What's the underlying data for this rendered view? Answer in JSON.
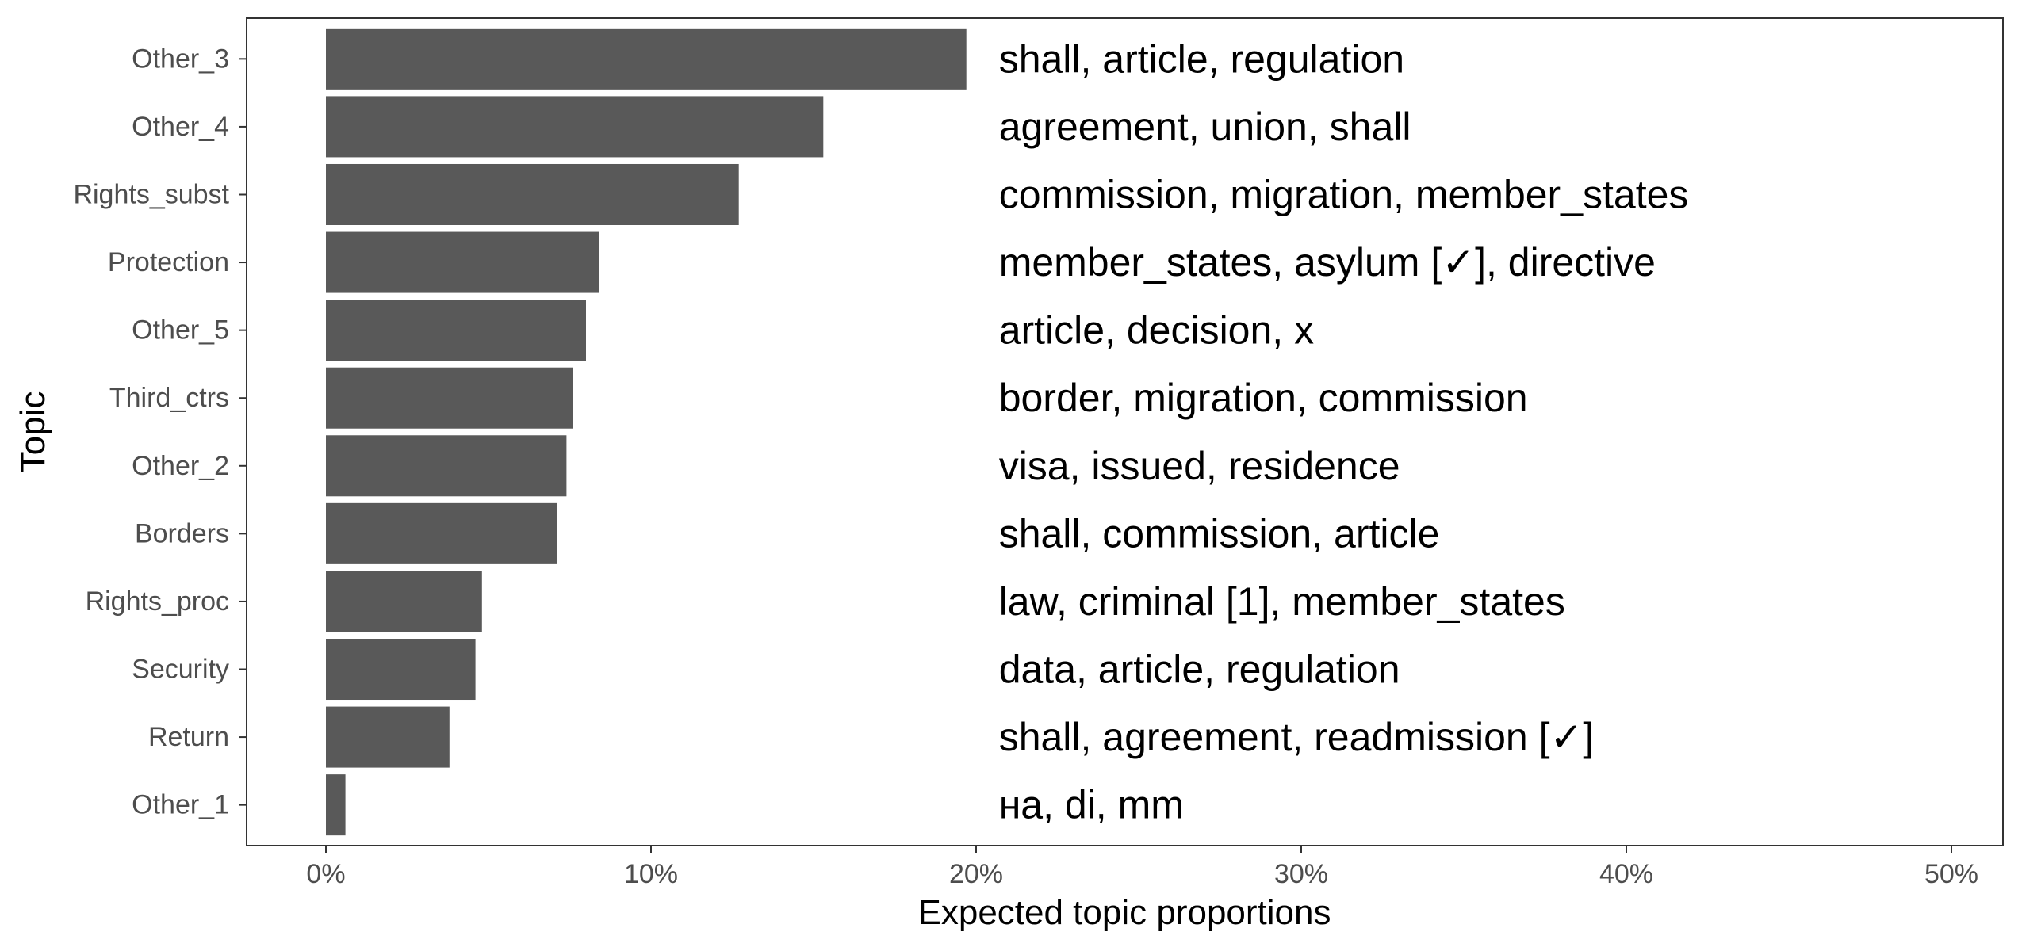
{
  "chart_data": {
    "type": "bar",
    "orientation": "horizontal",
    "xlabel": "Expected topic proportions",
    "ylabel": "Topic",
    "xlim": [
      0,
      50
    ],
    "x_ticks": [
      0,
      10,
      20,
      30,
      40,
      50
    ],
    "x_tick_labels": [
      "0%",
      "10%",
      "20%",
      "30%",
      "40%",
      "50%"
    ],
    "grid": false,
    "bar_color": "#595959",
    "categories": [
      "Other_3",
      "Other_4",
      "Rights_subst",
      "Protection",
      "Other_5",
      "Third_ctrs",
      "Other_2",
      "Borders",
      "Rights_proc",
      "Security",
      "Return",
      "Other_1"
    ],
    "values": [
      19.7,
      15.3,
      12.7,
      8.4,
      8.0,
      7.6,
      7.4,
      7.1,
      4.8,
      4.6,
      3.8,
      0.6
    ],
    "annotations": [
      "shall, article, regulation",
      "agreement, union, shall",
      "commission, migration, member_states",
      "member_states, asylum [✓], directive",
      "article, decision, x",
      "border, migration, commission",
      "visa, issued, residence",
      "shall, commission, article",
      "law, criminal [1], member_states",
      "data, article, regulation",
      "shall, agreement, readmission [✓]",
      "на, di, mm"
    ],
    "annotation_x": 20.7
  }
}
